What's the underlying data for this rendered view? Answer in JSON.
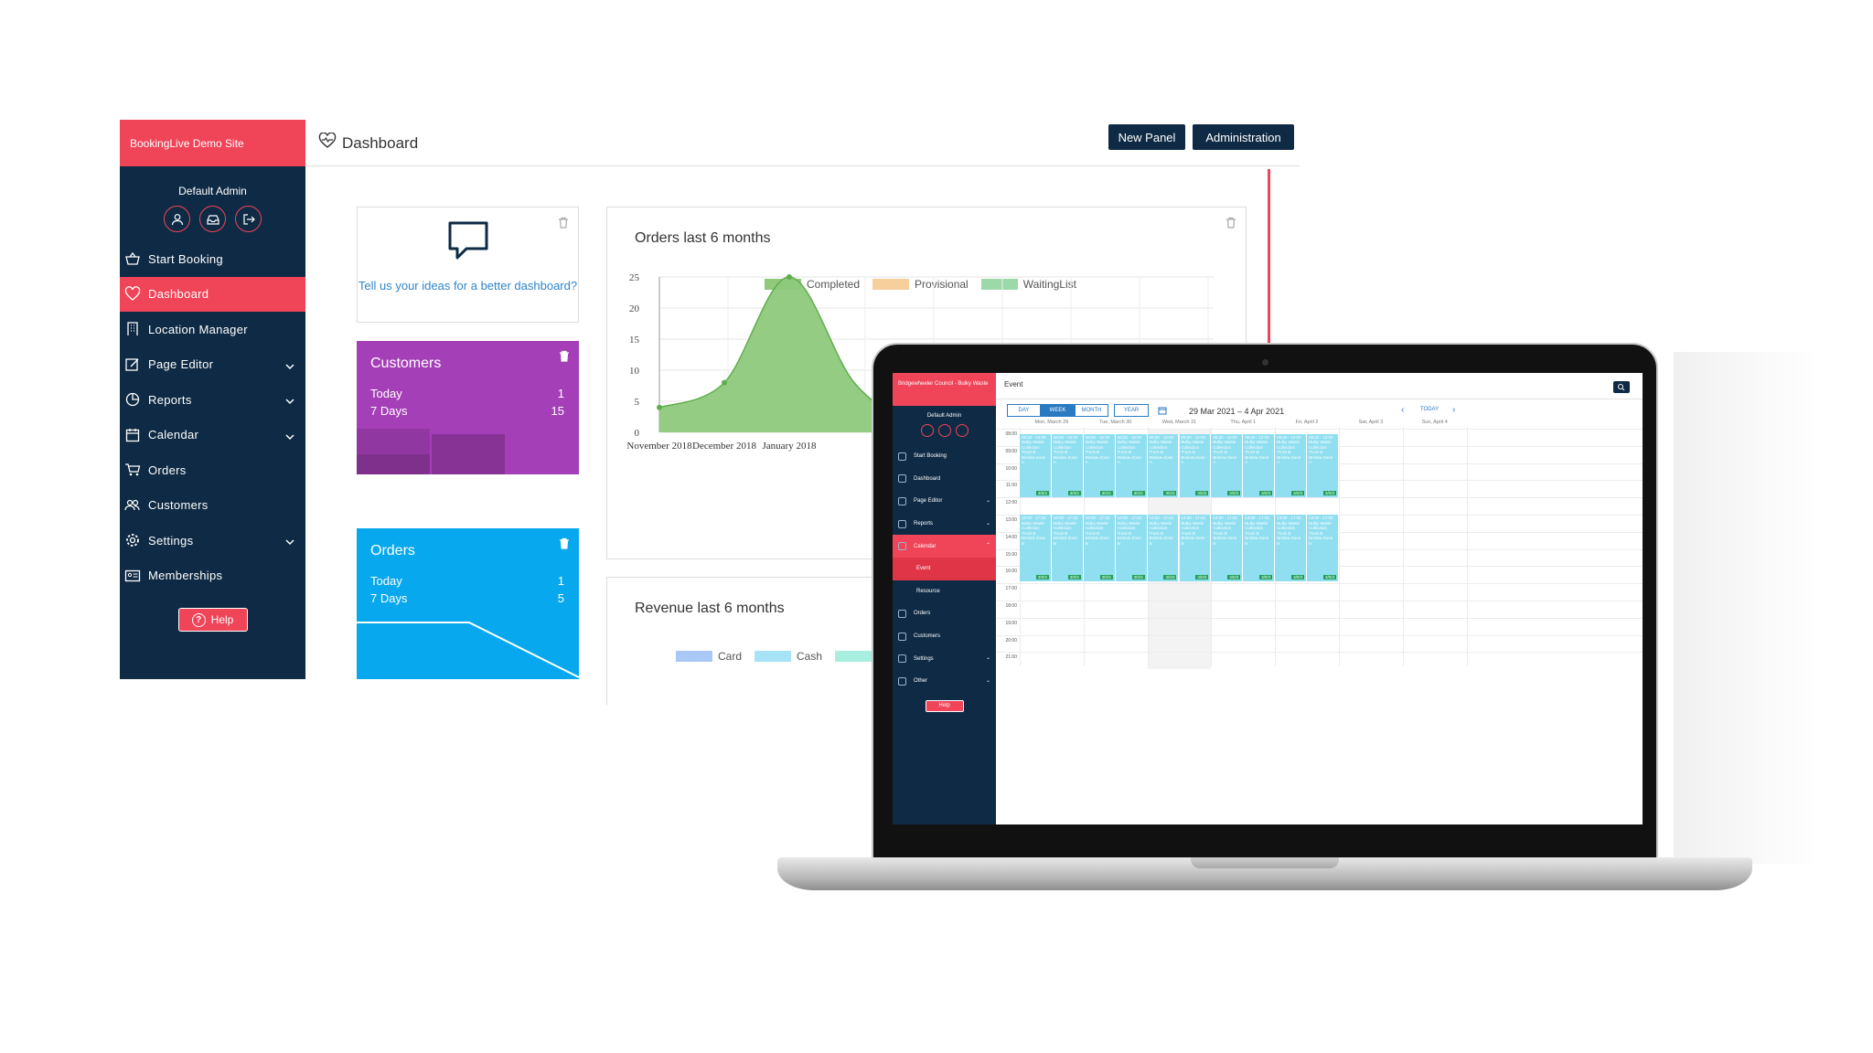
{
  "dashboard": {
    "site_title": "BookingLive Demo Site",
    "user_name": "Default Admin",
    "nav": [
      {
        "label": "Start Booking",
        "icon": "basket-icon",
        "has_chevron": false,
        "active": false
      },
      {
        "label": "Dashboard",
        "icon": "heart-pulse-icon",
        "has_chevron": false,
        "active": true
      },
      {
        "label": "Location Manager",
        "icon": "building-icon",
        "has_chevron": false,
        "active": false
      },
      {
        "label": "Page Editor",
        "icon": "edit-icon",
        "has_chevron": true,
        "active": false
      },
      {
        "label": "Reports",
        "icon": "pie-chart-icon",
        "has_chevron": true,
        "active": false
      },
      {
        "label": "Calendar",
        "icon": "calendar-icon",
        "has_chevron": true,
        "active": false
      },
      {
        "label": "Orders",
        "icon": "cart-icon",
        "has_chevron": false,
        "active": false
      },
      {
        "label": "Customers",
        "icon": "users-icon",
        "has_chevron": false,
        "active": false
      },
      {
        "label": "Settings",
        "icon": "gear-icon",
        "has_chevron": true,
        "active": false
      },
      {
        "label": "Memberships",
        "icon": "id-card-icon",
        "has_chevron": false,
        "active": false
      }
    ],
    "help_label": "Help",
    "page_title": "Dashboard",
    "new_panel_label": "New Panel",
    "administration_label": "Administration",
    "feedback_text": "Tell us your ideas for a better dashboard?",
    "customers": {
      "title": "Customers",
      "today_label": "Today",
      "today_value": "1",
      "week_label": "7 Days",
      "week_value": "15",
      "color": "#a53fb8"
    },
    "orders": {
      "title": "Orders",
      "today_label": "Today",
      "today_value": "1",
      "week_label": "7 Days",
      "week_value": "5",
      "color": "#07a8ee"
    },
    "revenue": {
      "title": "Revenue last 6 months",
      "legend": [
        "Card",
        "Cash"
      ]
    }
  },
  "chart_data": {
    "type": "area",
    "title": "Orders last 6 months",
    "categories": [
      "November 2018",
      "December 2018",
      "January 2018"
    ],
    "x": [
      0,
      1,
      2,
      3,
      4
    ],
    "series": [
      {
        "name": "Completed",
        "color": "#8ec97c",
        "values": [
          4,
          8,
          25,
          8,
          0
        ]
      },
      {
        "name": "Provisional",
        "color": "#f6cf9c",
        "values": [
          0,
          0,
          0,
          0,
          0
        ]
      },
      {
        "name": "WaitingList",
        "color": "#9bd9a8",
        "values": [
          0,
          0,
          0,
          0,
          0
        ]
      }
    ],
    "ylim": [
      0,
      25
    ],
    "yticks": [
      0,
      5,
      10,
      15,
      20,
      25
    ],
    "grid": true,
    "legend_position": "top"
  },
  "laptop": {
    "site_title": "Bridgewheeler Council - Bulky Waste",
    "user_name": "Default Admin",
    "nav": [
      {
        "label": "Start Booking",
        "chev": "",
        "cls": ""
      },
      {
        "label": "Dashboard",
        "chev": "",
        "cls": ""
      },
      {
        "label": "Page Editor",
        "chev": "⌄",
        "cls": ""
      },
      {
        "label": "Reports",
        "chev": "⌄",
        "cls": ""
      },
      {
        "label": "Calendar",
        "chev": "⌃",
        "cls": "active"
      },
      {
        "label": "Event",
        "chev": "",
        "cls": "sub active"
      },
      {
        "label": "Resource",
        "chev": "",
        "cls": "sub"
      },
      {
        "label": "Orders",
        "chev": "",
        "cls": ""
      },
      {
        "label": "Customers",
        "chev": "",
        "cls": ""
      },
      {
        "label": "Settings",
        "chev": "⌄",
        "cls": ""
      },
      {
        "label": "Other",
        "chev": "⌄",
        "cls": ""
      }
    ],
    "help_label": "Help",
    "page_title": "Event",
    "view_buttons": [
      "DAY",
      "WEEK",
      "MONTH",
      "YEAR"
    ],
    "selected_view": "WEEK",
    "date_range": "29 Mar 2021 – 4 Apr 2021",
    "today_label": "TODAY",
    "days": [
      "Mon, March 29",
      "Tue, March 30",
      "Wed, March 31",
      "Thu, April 1",
      "Fri, April 2",
      "Sat, April 3",
      "Sun, April 4"
    ],
    "times": [
      "08:00",
      "09:00",
      "10:00",
      "11:00",
      "12:00",
      "13:00",
      "14:00",
      "15:00",
      "16:00",
      "17:00",
      "18:00",
      "19:00",
      "20:00",
      "21:00"
    ],
    "morning_event": {
      "time": "08:00 - 12:00",
      "text": "Bulky Waste Collection Truck B Brislow Zone A",
      "badge": "3/0/3"
    },
    "afternoon_event": {
      "time": "13:00 - 17:00",
      "text": "Bulky Waste Collection Truck B Brislow Zone B",
      "badge": "3/0/3"
    }
  }
}
